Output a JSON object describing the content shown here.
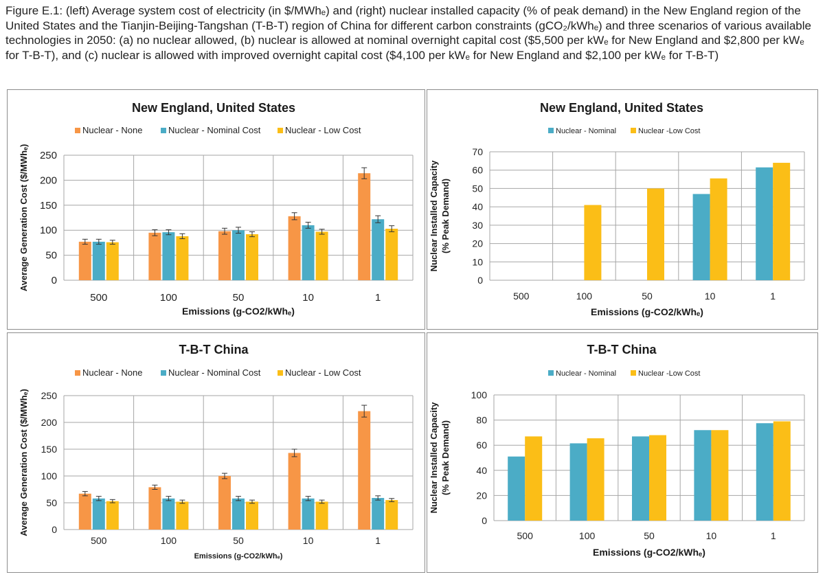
{
  "caption": "Figure E.1: (left) Average system cost of electricity (in $/MWhₑ) and (right) nuclear installed capacity (% of peak demand) in the New England region of the United States and the Tianjin-Beijing-Tangshan (T-B-T) region of China for different carbon constraints (gCO₂/kWhₑ) and three scenarios of various available technologies in 2050: (a) no nuclear allowed, (b) nuclear is allowed at nominal overnight capital cost ($5,500 per kWₑ for New England and $2,800 per kWₑ for T-B-T), and (c) nuclear is allowed with improved overnight capital cost ($4,100 per kWₑ for New England and $2,100 per kWₑ for T-B-T)",
  "colors": {
    "none": "#f79646",
    "nominal": "#4bacc6",
    "low": "#fbbe17",
    "grid": "#a6a6a6",
    "border": "#8c8c8c"
  },
  "chart_data": [
    {
      "type": "bar",
      "title": "New England, United States",
      "xlabel": "Emissions (g-CO2/kWhₑ)",
      "ylabel": "Average Generation Cost ($/MWhₑ)",
      "categories": [
        "500",
        "100",
        "50",
        "10",
        "1"
      ],
      "ylim": [
        0,
        250
      ],
      "yticks": [
        0,
        50,
        100,
        150,
        200,
        250
      ],
      "error_bars": true,
      "series": [
        {
          "name": "Nuclear - None",
          "values": [
            77,
            95,
            98,
            128,
            214
          ],
          "errors": [
            5,
            6,
            6,
            7,
            11
          ]
        },
        {
          "name": "Nuclear - Nominal Cost",
          "values": [
            77,
            96,
            100,
            110,
            122
          ],
          "errors": [
            5,
            5,
            6,
            6,
            7
          ]
        },
        {
          "name": "Nuclear - Low Cost",
          "values": [
            76,
            88,
            92,
            97,
            103
          ],
          "errors": [
            4,
            5,
            5,
            5,
            6
          ]
        }
      ]
    },
    {
      "type": "bar",
      "title": "New England, United States",
      "xlabel": "Emissions (g-CO2/kWhₑ)",
      "ylabel": "Nuclear Installed Capacity (% Peak Demand)",
      "categories": [
        "500",
        "100",
        "50",
        "10",
        "1"
      ],
      "ylim": [
        0,
        70
      ],
      "yticks": [
        0,
        10,
        20,
        30,
        40,
        50,
        60,
        70
      ],
      "error_bars": false,
      "series": [
        {
          "name": "Nuclear - Nominal",
          "values": [
            0,
            0,
            0,
            47,
            61.5
          ]
        },
        {
          "name": "Nuclear -Low Cost",
          "values": [
            0,
            41,
            50,
            55.5,
            64
          ]
        }
      ]
    },
    {
      "type": "bar",
      "title": "T-B-T China",
      "xlabel": "Emissions (g-CO2/kWhₑ)",
      "ylabel": "Average Generation Cost ($/MWhₑ)",
      "categories": [
        "500",
        "100",
        "50",
        "10",
        "1"
      ],
      "ylim": [
        0,
        250
      ],
      "yticks": [
        0,
        50,
        100,
        150,
        200,
        250
      ],
      "error_bars": true,
      "series": [
        {
          "name": "Nuclear - None",
          "values": [
            67,
            79,
            100,
            143,
            221
          ],
          "errors": [
            4,
            4,
            5,
            7,
            11
          ]
        },
        {
          "name": "Nuclear - Nominal Cost",
          "values": [
            58,
            58,
            58,
            58,
            59
          ],
          "errors": [
            4,
            4,
            4,
            4,
            4
          ]
        },
        {
          "name": "Nuclear - Low Cost",
          "values": [
            53,
            52,
            52,
            52,
            55
          ],
          "errors": [
            3,
            3,
            3,
            3,
            3
          ]
        }
      ]
    },
    {
      "type": "bar",
      "title": "T-B-T China",
      "xlabel": "Emissions (g-CO2/kWhₑ)",
      "ylabel": "Nuclear Installed Capacity (% Peak Demand)",
      "categories": [
        "500",
        "100",
        "50",
        "10",
        "1"
      ],
      "ylim": [
        0,
        100
      ],
      "yticks": [
        0,
        20,
        40,
        60,
        80,
        100
      ],
      "error_bars": false,
      "series": [
        {
          "name": "Nuclear - Nominal",
          "values": [
            51,
            61.5,
            67,
            72,
            77.5
          ]
        },
        {
          "name": "Nuclear -Low Cost",
          "values": [
            67,
            65.5,
            68,
            72,
            79
          ]
        }
      ]
    }
  ]
}
